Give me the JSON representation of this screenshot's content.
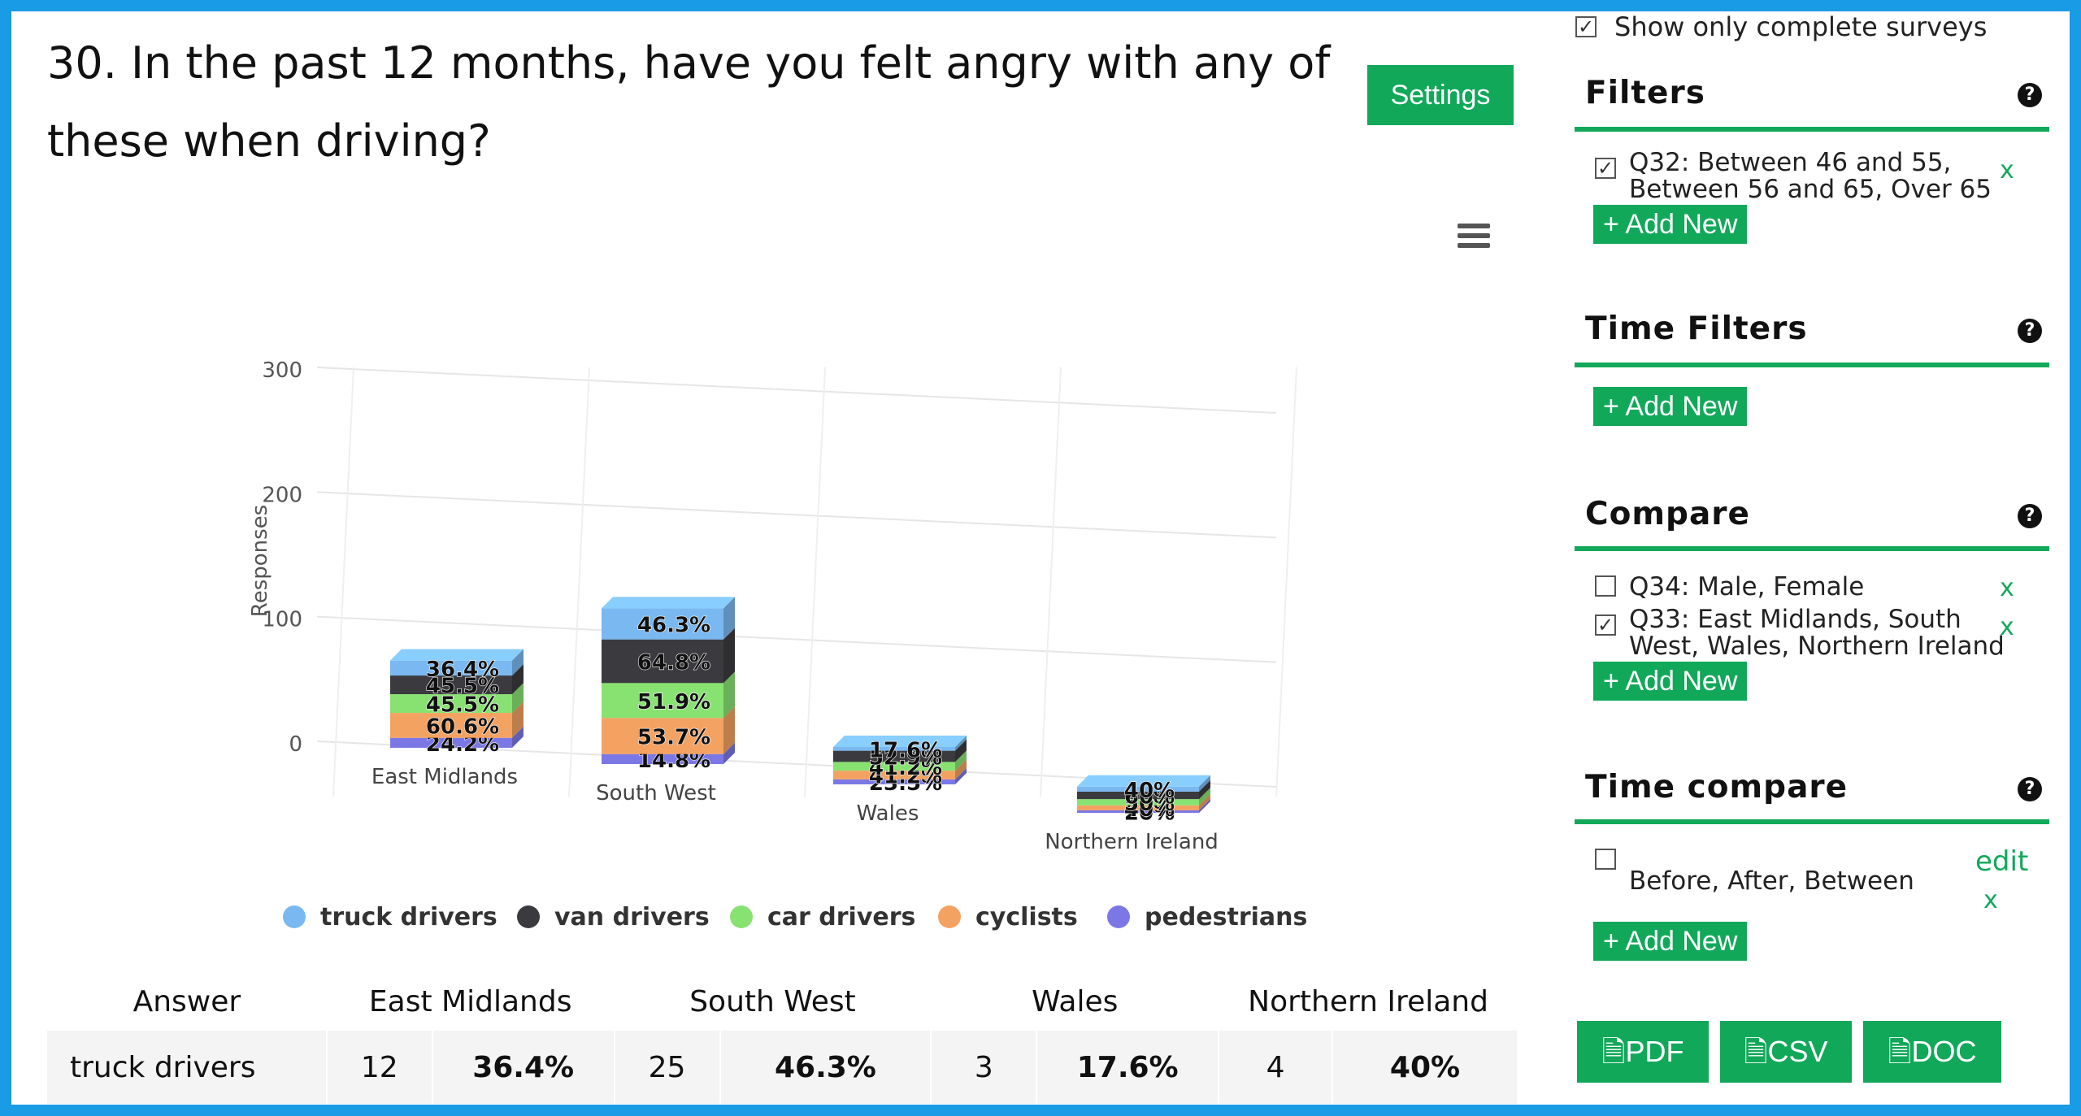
{
  "question": "30. In the past 12 months, have you felt angry with any of these when driving?",
  "settings_label": "Settings",
  "chart_data": {
    "type": "bar",
    "stacked": true,
    "style": "3d",
    "ylabel": "Responses",
    "ylim": [
      0,
      300
    ],
    "yticks": [
      "0",
      "100",
      "200",
      "300"
    ],
    "categories": [
      "East Midlands",
      "South West",
      "Wales",
      "Northern Ireland"
    ],
    "series": [
      {
        "name": "pedestrians",
        "color": "#7b78e6",
        "values": [
          8,
          8,
          4,
          2
        ],
        "labels": [
          "24.2%",
          "14.8%",
          "23.5%",
          "20%"
        ]
      },
      {
        "name": "cyclists",
        "color": "#f4a261",
        "values": [
          20,
          29,
          7,
          4
        ],
        "labels": [
          "60.6%",
          "53.7%",
          "41.2%",
          "40%"
        ]
      },
      {
        "name": "car drivers",
        "color": "#88e272",
        "values": [
          15,
          28,
          7,
          5
        ],
        "labels": [
          "45.5%",
          "51.9%",
          "41.2%",
          "50%"
        ]
      },
      {
        "name": "van drivers",
        "color": "#3b3b3f",
        "values": [
          15,
          35,
          9,
          6
        ],
        "labels": [
          "45.5%",
          "64.8%",
          "52.9%",
          "60%"
        ]
      },
      {
        "name": "truck drivers",
        "color": "#79b8f0",
        "values": [
          12,
          25,
          3,
          4
        ],
        "labels": [
          "36.4%",
          "46.3%",
          "17.6%",
          "40%"
        ]
      }
    ],
    "legend_order": [
      "truck drivers",
      "van drivers",
      "car drivers",
      "cyclists",
      "pedestrians"
    ]
  },
  "table": {
    "headers": [
      "Answer",
      "East Midlands",
      "South West",
      "Wales",
      "Northern Ireland"
    ],
    "rows": [
      {
        "answer": "truck drivers",
        "cells": [
          "12",
          "36.4%",
          "25",
          "46.3%",
          "3",
          "17.6%",
          "4",
          "40%"
        ]
      }
    ]
  },
  "sidebar": {
    "show_complete": "Show only complete surveys",
    "filters": {
      "title": "Filters",
      "item": "Q32: Between 46 and 55, Between 56 and 65, Over 65",
      "item_line1": "Q32: Between 46 and 55,",
      "item_line2": "Between 56 and 65, Over 65",
      "add": "+ Add New",
      "remove": "x"
    },
    "time_filters": {
      "title": "Time Filters",
      "add": "+ Add New"
    },
    "compare": {
      "title": "Compare",
      "item1": "Q34: Male, Female",
      "item2_line1": "Q33: East Midlands, South",
      "item2_line2": "West, Wales, Northern Ireland",
      "add": "+ Add New",
      "remove": "x"
    },
    "time_compare": {
      "title": "Time compare",
      "item": "Before, After, Between",
      "edit": "edit",
      "remove": "x",
      "add": "+ Add New"
    },
    "exports": [
      "PDF",
      "CSV",
      "DOC"
    ],
    "help": "?"
  },
  "colors": {
    "accent": "#12a85a",
    "frame": "#1a9be6"
  }
}
